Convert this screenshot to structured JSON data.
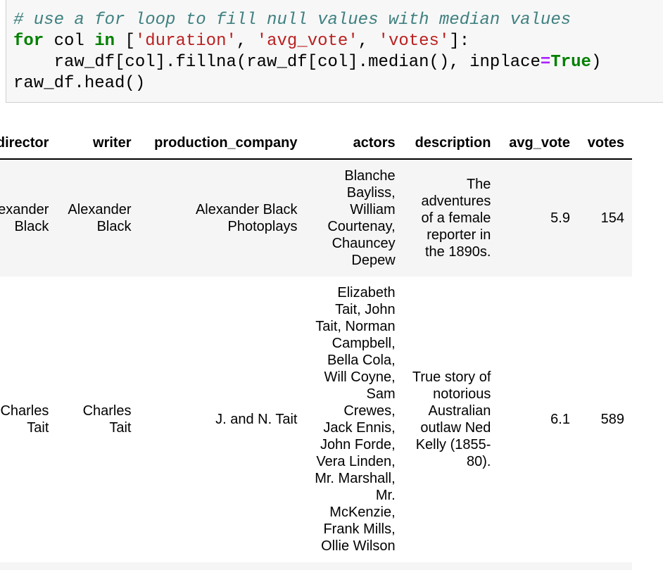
{
  "code_cell": {
    "lines": [
      [
        {
          "t": "# use a for loop to fill null values with median values",
          "c": "comment"
        }
      ],
      [
        {
          "t": "for",
          "c": "kw"
        },
        {
          "t": " col ",
          "c": ""
        },
        {
          "t": "in",
          "c": "kw"
        },
        {
          "t": " [",
          "c": ""
        },
        {
          "t": "'duration'",
          "c": "str"
        },
        {
          "t": ", ",
          "c": ""
        },
        {
          "t": "'avg_vote'",
          "c": "str"
        },
        {
          "t": ", ",
          "c": ""
        },
        {
          "t": "'votes'",
          "c": "str"
        },
        {
          "t": "]:",
          "c": ""
        }
      ],
      [
        {
          "t": "    raw_df[col].fillna(raw_df[col].median(), inplace",
          "c": ""
        },
        {
          "t": "=",
          "c": "op"
        },
        {
          "t": "True",
          "c": "kw"
        },
        {
          "t": ")",
          "c": ""
        }
      ],
      [
        {
          "t": "raw_df.head()",
          "c": ""
        }
      ]
    ]
  },
  "table": {
    "columns": [
      "director",
      "writer",
      "production_company",
      "actors",
      "description",
      "avg_vote",
      "votes"
    ],
    "rows": [
      {
        "director": "Alexander Black",
        "writer": "Alexander Black",
        "production_company": "Alexander Black Photoplays",
        "actors": "Blanche Bayliss, William Courtenay, Chauncey Depew",
        "description": "The adventures of a female reporter in the 1890s.",
        "avg_vote": "5.9",
        "votes": "154"
      },
      {
        "director": "Charles Tait",
        "writer": "Charles Tait",
        "production_company": "J. and N. Tait",
        "actors": "Elizabeth Tait, John Tait, Norman Campbell, Bella Cola, Will Coyne, Sam Crewes, Jack Ennis, John Forde, Vera Linden, Mr. Marshall, Mr. McKenzie, Frank Mills, Ollie Wilson",
        "description": "True story of notorious Australian outlaw Ned Kelly (1855-80).",
        "avg_vote": "6.1",
        "votes": "589"
      }
    ]
  },
  "colors": {
    "comment": "#408080",
    "keyword": "#008000",
    "string": "#ba2121",
    "operator": "#aa22ff",
    "cell_background": "#f7f7f7",
    "stripe_background": "#f5f5f5"
  }
}
